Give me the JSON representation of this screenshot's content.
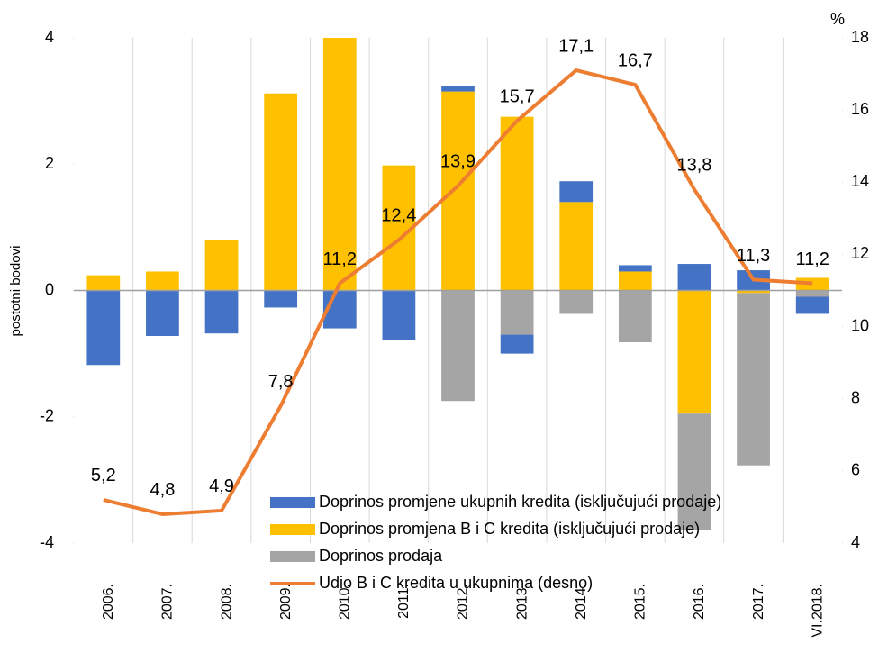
{
  "chart_data": {
    "type": "bar",
    "y_label": "postotni bodovi",
    "y2_label": "%",
    "categories": [
      "2006.",
      "2007.",
      "2008.",
      "2009.",
      "2010.",
      "2011.",
      "2012.",
      "2013.",
      "2014.",
      "2015.",
      "2016.",
      "2017.",
      "VI.2018."
    ],
    "series": [
      {
        "name": "Doprinos promjene ukupnih kredita (isključujući prodaje)",
        "type": "bar",
        "color": "#4472c4",
        "values": [
          -1.18,
          -0.72,
          -0.68,
          -0.27,
          -0.6,
          -0.78,
          0.09,
          -0.3,
          0.33,
          0.1,
          0.42,
          0.32,
          -0.27
        ]
      },
      {
        "name": "Doprinos promjena B i C kredita (isključujući prodaje)",
        "type": "bar",
        "color": "#ffc000",
        "values": [
          0.24,
          0.3,
          0.8,
          3.12,
          4.0,
          1.98,
          3.15,
          2.75,
          1.4,
          0.3,
          -1.95,
          -0.04,
          0.2
        ]
      },
      {
        "name": "Doprinos prodaja",
        "type": "bar",
        "color": "#a5a5a5",
        "values": [
          0,
          0,
          0,
          0,
          0,
          0,
          -1.75,
          -0.7,
          -0.37,
          -0.82,
          -1.85,
          -2.73,
          -0.1
        ]
      },
      {
        "name": "Udio B i C kredita u ukupnima (desno)",
        "type": "line",
        "axis": "y2",
        "color": "#ed7d31",
        "values": [
          5.2,
          4.8,
          4.9,
          7.8,
          11.2,
          12.4,
          13.9,
          15.7,
          17.1,
          16.7,
          13.8,
          11.3,
          11.2
        ],
        "value_labels": [
          "5,2",
          "4,8",
          "4,9",
          "7,8",
          "11,2",
          "12,4",
          "13,9",
          "15,7",
          "17,1",
          "16,7",
          "13,8",
          "11,3",
          "11,2"
        ]
      }
    ],
    "ylim": [
      -4,
      4
    ],
    "yticks": [
      -4,
      -2,
      0,
      2,
      4
    ],
    "y2lim": [
      4,
      18
    ],
    "y2ticks": [
      4,
      6,
      8,
      10,
      12,
      14,
      16,
      18
    ]
  }
}
